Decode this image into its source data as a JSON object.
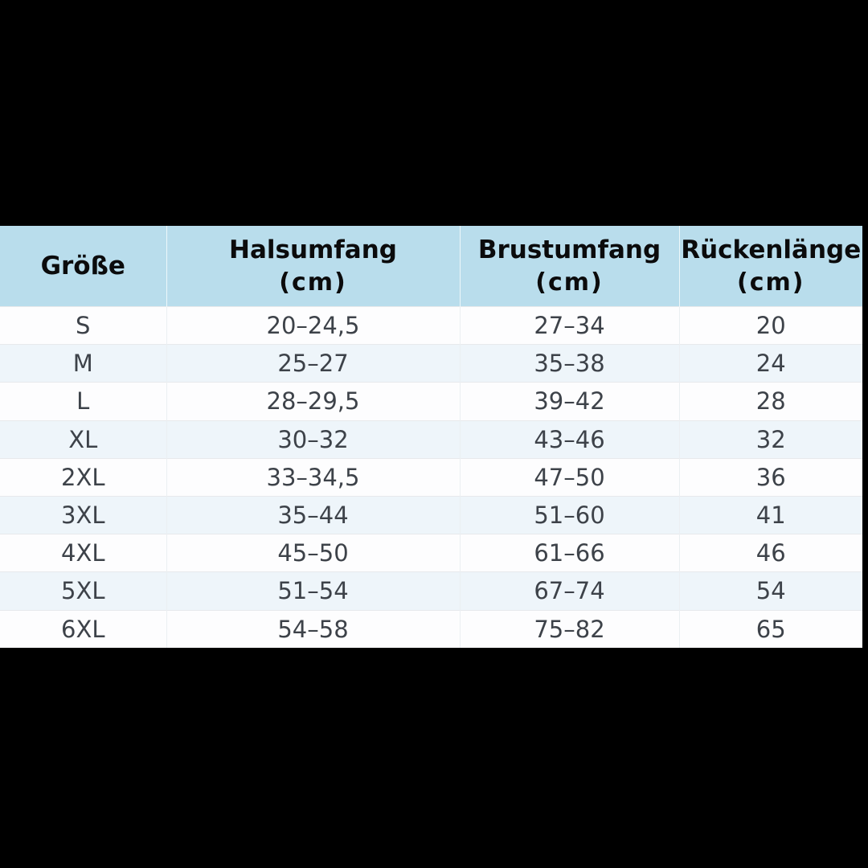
{
  "page": {
    "background_color": "#000000"
  },
  "chart_data": {
    "type": "table",
    "title": "",
    "columns": [
      {
        "label": "Größe",
        "sublabel": ""
      },
      {
        "label": "Halsumfang",
        "sublabel": "(cm)"
      },
      {
        "label": "Brustumfang",
        "sublabel": "(cm)"
      },
      {
        "label": "Rückenlänge",
        "sublabel": "(cm)"
      }
    ],
    "rows": [
      [
        "S",
        "20–24,5",
        "27–34",
        "20"
      ],
      [
        "M",
        "25–27",
        "35–38",
        "24"
      ],
      [
        "L",
        "28–29,5",
        "39–42",
        "28"
      ],
      [
        "XL",
        "30–32",
        "43–46",
        "32"
      ],
      [
        "2XL",
        "33–34,5",
        "47–50",
        "36"
      ],
      [
        "3XL",
        "35–44",
        "51–60",
        "41"
      ],
      [
        "4XL",
        "45–50",
        "61–66",
        "46"
      ],
      [
        "5XL",
        "51–54",
        "67–74",
        "54"
      ],
      [
        "6XL",
        "54–58",
        "75–82",
        "65"
      ]
    ],
    "layout_hints": {
      "header_bg": "#b9ddec",
      "row_even_bg": "#fdfdfe",
      "row_odd_bg": "#eef5fa",
      "header_text_color": "#0b0b0c",
      "body_text_color": "#3d4249",
      "grid_line_color": "#e7e9ec",
      "page_bg": "#000000"
    }
  }
}
